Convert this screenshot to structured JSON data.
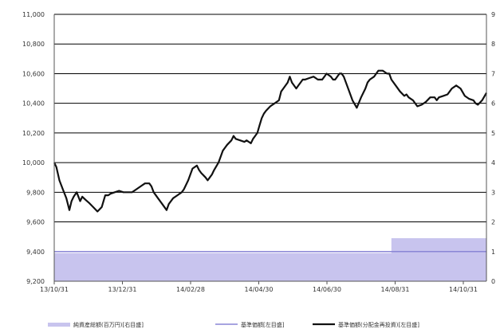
{
  "chart_data": {
    "type": "line",
    "x_ticks": [
      "13/10/31",
      "13/12/31",
      "14/02/28",
      "14/04/30",
      "14/06/30",
      "14/08/31",
      "14/10/31"
    ],
    "y_left": {
      "ylim": [
        9200,
        11000
      ],
      "ticks": [
        "9,200",
        "9,400",
        "9,600",
        "9,800",
        "10,000",
        "10,200",
        "10,400",
        "10,600",
        "10,800",
        "11,000"
      ]
    },
    "y_right": {
      "ylim": [
        0,
        9
      ],
      "ticks": [
        "0",
        "1",
        "2",
        "3",
        "4",
        "5",
        "6",
        "7",
        "8",
        "9"
      ]
    },
    "grid": true,
    "legend_position": "bottom",
    "series": [
      {
        "name": "純資産総額(百万円)[右目盛]",
        "axis": "right",
        "style": "area",
        "color": "#c8c4ee",
        "x": [
          0,
          0.78,
          0.78,
          1.0
        ],
        "values": [
          0.95,
          0.95,
          1.45,
          1.45
        ]
      },
      {
        "name": "基準価額[左目盛]",
        "axis": "left",
        "style": "line",
        "color": "#8a86d6",
        "x": [
          0,
          0.36,
          1.0
        ],
        "values": [
          9400,
          9400,
          9400
        ]
      },
      {
        "name": "基準価額(分配金再投資)[左目盛]",
        "axis": "left",
        "style": "line",
        "color": "#111111",
        "x": [
          0,
          0.005,
          0.012,
          0.02,
          0.028,
          0.035,
          0.04,
          0.045,
          0.052,
          0.06,
          0.065,
          0.072,
          0.08,
          0.09,
          0.1,
          0.11,
          0.118,
          0.125,
          0.13,
          0.14,
          0.15,
          0.16,
          0.17,
          0.18,
          0.19,
          0.2,
          0.21,
          0.22,
          0.225,
          0.23,
          0.24,
          0.25,
          0.26,
          0.265,
          0.275,
          0.285,
          0.295,
          0.3,
          0.305,
          0.31,
          0.315,
          0.32,
          0.33,
          0.335,
          0.34,
          0.35,
          0.355,
          0.36,
          0.365,
          0.37,
          0.38,
          0.39,
          0.395,
          0.4,
          0.41,
          0.415,
          0.42,
          0.43,
          0.44,
          0.445,
          0.455,
          0.46,
          0.465,
          0.47,
          0.475,
          0.48,
          0.485,
          0.49,
          0.5,
          0.51,
          0.52,
          0.525,
          0.53,
          0.54,
          0.545,
          0.55,
          0.56,
          0.565,
          0.57,
          0.575,
          0.58,
          0.59,
          0.6,
          0.61,
          0.62,
          0.625,
          0.63,
          0.64,
          0.645,
          0.65,
          0.66,
          0.665,
          0.67,
          0.68,
          0.69,
          0.7,
          0.71,
          0.72,
          0.725,
          0.73,
          0.74,
          0.745,
          0.75,
          0.76,
          0.77,
          0.775,
          0.78,
          0.79,
          0.8,
          0.81,
          0.815,
          0.82,
          0.83,
          0.84,
          0.85,
          0.86,
          0.87,
          0.88,
          0.885,
          0.89,
          0.9,
          0.91,
          0.915,
          0.92,
          0.93,
          0.94,
          0.95,
          0.96,
          0.97,
          0.975,
          0.98,
          0.99,
          1.0
        ],
        "values": [
          10000,
          9970,
          9880,
          9820,
          9760,
          9680,
          9740,
          9770,
          9800,
          9740,
          9770,
          9750,
          9730,
          9700,
          9670,
          9700,
          9780,
          9780,
          9790,
          9800,
          9810,
          9800,
          9800,
          9800,
          9820,
          9840,
          9860,
          9860,
          9840,
          9800,
          9760,
          9720,
          9680,
          9720,
          9760,
          9780,
          9800,
          9820,
          9850,
          9880,
          9920,
          9960,
          9980,
          9950,
          9930,
          9900,
          9880,
          9900,
          9920,
          9950,
          10000,
          10080,
          10100,
          10120,
          10150,
          10180,
          10160,
          10150,
          10140,
          10150,
          10130,
          10160,
          10180,
          10200,
          10250,
          10300,
          10330,
          10350,
          10380,
          10400,
          10420,
          10480,
          10500,
          10540,
          10580,
          10540,
          10500,
          10520,
          10540,
          10560,
          10560,
          10570,
          10580,
          10560,
          10560,
          10580,
          10600,
          10580,
          10560,
          10560,
          10600,
          10600,
          10580,
          10500,
          10420,
          10370,
          10440,
          10500,
          10540,
          10560,
          10580,
          10600,
          10620,
          10620,
          10600,
          10600,
          10560,
          10520,
          10480,
          10450,
          10460,
          10440,
          10420,
          10380,
          10390,
          10410,
          10440,
          10440,
          10420,
          10440,
          10450,
          10460,
          10480,
          10500,
          10520,
          10500,
          10450,
          10430,
          10420,
          10400,
          10390,
          10420,
          10470
        ]
      }
    ]
  }
}
